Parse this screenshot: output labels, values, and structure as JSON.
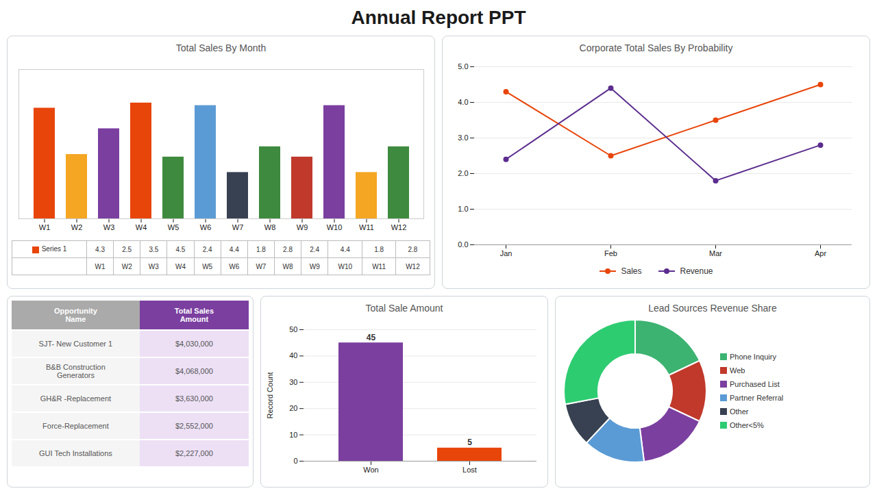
{
  "title": "Annual Report PPT",
  "chart_data": [
    {
      "type": "bar",
      "title": "Total Sales By Month",
      "categories": [
        "W1",
        "W2",
        "W3",
        "W4",
        "W5",
        "W6",
        "W7",
        "W8",
        "W9",
        "W10",
        "W11",
        "W12"
      ],
      "series": [
        {
          "name": "Series 1",
          "color": "#E8450A",
          "values": [
            4.3,
            2.5,
            3.5,
            4.5,
            2.4,
            4.4,
            1.8,
            2.8,
            2.4,
            4.4,
            1.8,
            2.8
          ]
        }
      ],
      "colors": [
        "#E8450A",
        "#F5A623",
        "#7B3FA0",
        "#E8450A",
        "#3E8A3E",
        "#5B9BD5",
        "#374151",
        "#3E8A3E",
        "#C0392B",
        "#7B3FA0",
        "#F5A623",
        "#3E8A3E"
      ],
      "ylim": [
        0,
        5.8
      ],
      "tick_labels": "x",
      "legend": "bottom"
    },
    {
      "type": "line",
      "title": "Corporate Total Sales By Probability",
      "categories": [
        "Jan",
        "Feb",
        "Mar",
        "Apr"
      ],
      "series": [
        {
          "name": "Sales",
          "color": "#E8450A",
          "values": [
            4.3,
            2.5,
            3.5,
            4.5
          ]
        },
        {
          "name": "Revenue",
          "color": "#5B2D8E",
          "values": [
            2.4,
            4.4,
            1.8,
            2.8
          ]
        }
      ],
      "ylim": [
        0,
        5
      ],
      "yticks": [
        0,
        1,
        2,
        3,
        4,
        5
      ],
      "grid": true,
      "marker": "circle",
      "legend": "bottom"
    },
    {
      "type": "table",
      "columns": [
        "Opportunity\nName",
        "Total Sales\nAmount"
      ],
      "colors": [
        "#AAAAAA",
        "#7B3FA0"
      ],
      "rows": [
        [
          "SJT- New Customer 1",
          "$4,030,000"
        ],
        [
          "B&B Construction\nGenerators",
          "$4,068,000"
        ],
        [
          "GH&R -Replacement",
          "$3,630,000"
        ],
        [
          "Force-Replacement",
          "$2,552,000"
        ],
        [
          "GUI Tech Installations",
          "$2,227,000"
        ]
      ]
    },
    {
      "type": "bar",
      "title": "Total Sale Amount",
      "categories": [
        "Won",
        "Lost"
      ],
      "values": [
        45,
        5
      ],
      "colors": [
        "#7B3FA0",
        "#E8450A"
      ],
      "ylabel": "Record Count",
      "ylim": [
        0,
        50
      ],
      "yticks": [
        0,
        10,
        20,
        30,
        40,
        50
      ],
      "grid": true,
      "data_labels": true
    },
    {
      "type": "donut",
      "title": "Lead Sources Revenue Share",
      "categories": [
        "Phone Inquiry",
        "Web",
        "Purchased List",
        "Partner Referral",
        "Other",
        "Other<5%"
      ],
      "values": [
        18,
        14,
        16,
        14,
        10,
        28
      ],
      "colors": [
        "#3CB371",
        "#C0392B",
        "#7B3FA0",
        "#5B9BD5",
        "#374151",
        "#2ECC71"
      ],
      "legend": "right"
    }
  ]
}
